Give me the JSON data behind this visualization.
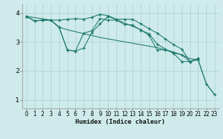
{
  "xlabel": "Humidex (Indice chaleur)",
  "bg_color": "#ceeaea",
  "grid_color": "#aed4d4",
  "line_color": "#1e7a6e",
  "xlim": [
    -0.5,
    23.5
  ],
  "ylim": [
    0.7,
    4.3
  ],
  "xticks": [
    0,
    1,
    2,
    3,
    4,
    5,
    6,
    7,
    8,
    9,
    10,
    11,
    12,
    13,
    14,
    15,
    16,
    17,
    18,
    19,
    20,
    21,
    22,
    23
  ],
  "yticks": [
    1,
    2,
    3,
    4
  ],
  "series": [
    {
      "x": [
        0,
        1,
        2,
        3,
        4,
        5,
        6,
        7,
        8,
        9,
        10,
        11,
        12,
        13,
        14,
        15,
        16,
        17,
        18,
        19,
        20,
        21,
        22,
        23
      ],
      "y": [
        3.88,
        3.72,
        3.75,
        3.75,
        3.5,
        3.42,
        3.35,
        3.28,
        3.22,
        3.15,
        3.1,
        3.05,
        3.0,
        2.95,
        2.9,
        2.85,
        2.8,
        2.72,
        2.65,
        2.55,
        2.42,
        2.38,
        1.55,
        1.18
      ],
      "has_markers": false
    },
    {
      "x": [
        0,
        1,
        2,
        3,
        4,
        5,
        6,
        7,
        8,
        9,
        10,
        11,
        12,
        13,
        14,
        15,
        16,
        17,
        18,
        19,
        20,
        21
      ],
      "y": [
        3.88,
        3.72,
        3.75,
        3.75,
        3.75,
        3.78,
        3.8,
        3.78,
        3.85,
        3.95,
        3.9,
        3.78,
        3.78,
        3.78,
        3.62,
        3.45,
        3.3,
        3.1,
        2.9,
        2.75,
        2.32,
        2.42
      ],
      "has_markers": true
    },
    {
      "x": [
        0,
        1,
        2,
        3,
        4,
        5,
        6,
        7,
        8,
        9,
        10,
        11,
        12,
        13,
        14,
        15,
        16,
        17,
        18,
        19,
        20,
        21
      ],
      "y": [
        3.88,
        3.72,
        3.75,
        3.75,
        3.5,
        2.72,
        2.68,
        3.3,
        3.38,
        3.8,
        3.75,
        3.75,
        3.6,
        3.58,
        3.4,
        3.28,
        2.92,
        2.75,
        2.6,
        2.32,
        2.32,
        2.42
      ],
      "has_markers": true
    },
    {
      "x": [
        0,
        3,
        4,
        5,
        6,
        7,
        8,
        9,
        10,
        14,
        15,
        16,
        17,
        18,
        19,
        20,
        21,
        22,
        23
      ],
      "y": [
        3.88,
        3.75,
        3.5,
        2.72,
        2.68,
        2.78,
        3.32,
        3.62,
        3.88,
        3.42,
        3.22,
        2.72,
        2.72,
        2.62,
        2.55,
        2.32,
        2.38,
        1.55,
        1.18
      ],
      "has_markers": true
    }
  ]
}
